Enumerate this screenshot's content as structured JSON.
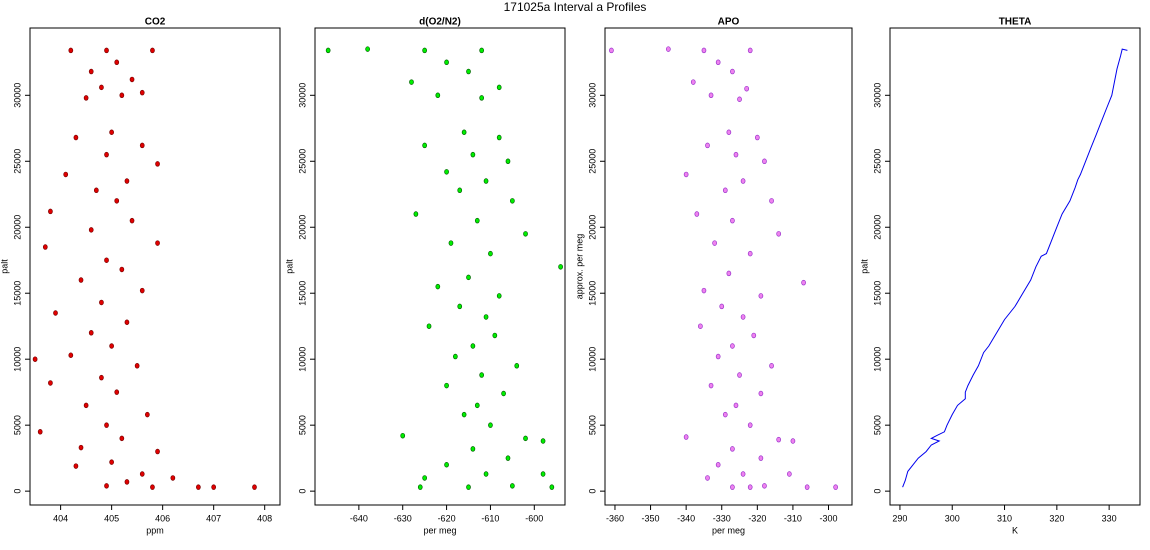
{
  "title": "171025a   Interval a Profiles",
  "chart_data": [
    {
      "type": "scatter",
      "title": "CO2",
      "xlabel": "ppm",
      "ylabel": "palt",
      "color": "#e00000",
      "edgecolor": "#7a0000",
      "xlim": [
        403.4,
        408.3
      ],
      "xticks": [
        404,
        405,
        406,
        407,
        408
      ],
      "ylim": [
        -1050,
        35100
      ],
      "yticks": [
        0,
        5000,
        10000,
        15000,
        20000,
        25000,
        30000
      ],
      "x": [
        404.9,
        404.2,
        405.8,
        405.1,
        404.6,
        405.4,
        404.8,
        405.6,
        404.5,
        405.2,
        405.0,
        404.3,
        405.6,
        404.9,
        405.9,
        404.1,
        405.3,
        404.7,
        405.1,
        403.8,
        405.4,
        404.6,
        405.9,
        403.7,
        404.9,
        405.2,
        404.4,
        405.6,
        404.8,
        403.9,
        405.3,
        404.6,
        405.0,
        404.2,
        403.5,
        405.5,
        404.8,
        403.8,
        405.1,
        404.5,
        405.7,
        404.9,
        403.6,
        405.2,
        404.4,
        405.9,
        405.0,
        404.3,
        405.6,
        406.2,
        405.3,
        406.7,
        407.0,
        407.8,
        405.8,
        404.9
      ],
      "y": [
        33400,
        33400,
        33400,
        32500,
        31800,
        31200,
        30600,
        30200,
        29800,
        30000,
        27200,
        26800,
        26200,
        25500,
        24800,
        24000,
        23500,
        22800,
        22000,
        21200,
        20500,
        19800,
        18800,
        18500,
        17500,
        16800,
        16000,
        15200,
        14300,
        13500,
        12800,
        12000,
        11000,
        10300,
        10000,
        9500,
        8600,
        8200,
        7500,
        6500,
        5800,
        5000,
        4500,
        4000,
        3300,
        3000,
        2200,
        1900,
        1300,
        1000,
        700,
        300,
        300,
        300,
        300,
        400
      ]
    },
    {
      "type": "scatter",
      "title": "d(O2/N2)",
      "xlabel": "per meg",
      "ylabel": "palt",
      "color": "#00ee00",
      "edgecolor": "#006400",
      "xlim": [
        -650,
        -593
      ],
      "xticks": [
        -640,
        -630,
        -620,
        -610,
        -600
      ],
      "ylim": [
        -1050,
        35100
      ],
      "yticks": [
        0,
        5000,
        10000,
        15000,
        20000,
        25000,
        30000
      ],
      "x": [
        -647,
        -638,
        -625,
        -612,
        -620,
        -615,
        -628,
        -608,
        -622,
        -612,
        -616,
        -608,
        -625,
        -614,
        -606,
        -620,
        -611,
        -617,
        -605,
        -627,
        -613,
        -602,
        -619,
        -610,
        -594,
        -615,
        -622,
        -608,
        -617,
        -611,
        -624,
        -609,
        -614,
        -618,
        -604,
        -612,
        -620,
        -607,
        -613,
        -616,
        -610,
        -630,
        -602,
        -598,
        -614,
        -606,
        -620,
        -611,
        -598,
        -625,
        -605,
        -615,
        -626,
        -596
      ],
      "y": [
        33400,
        33500,
        33400,
        33400,
        32500,
        31800,
        31000,
        30600,
        30000,
        29800,
        27200,
        26800,
        26200,
        25500,
        25000,
        24200,
        23500,
        22800,
        22000,
        21000,
        20500,
        19500,
        18800,
        18000,
        17000,
        16200,
        15500,
        14800,
        14000,
        13200,
        12500,
        11800,
        11000,
        10200,
        9500,
        8800,
        8000,
        7400,
        6500,
        5800,
        5000,
        4200,
        4000,
        3800,
        3200,
        2500,
        2000,
        1300,
        1300,
        1000,
        400,
        300,
        300,
        300
      ]
    },
    {
      "type": "scatter",
      "title": "APO",
      "xlabel": "per meg",
      "ylabel": "approx. per meg",
      "color": "#ee82ee",
      "edgecolor": "#9932cc",
      "xlim": [
        -362.8,
        -293.4
      ],
      "xticks": [
        -360,
        -350,
        -340,
        -330,
        -320,
        -310,
        -300
      ],
      "ylim": [
        -1050,
        35100
      ],
      "yticks": [
        0,
        5000,
        10000,
        15000,
        20000,
        25000,
        30000
      ],
      "x": [
        -361,
        -345,
        -335,
        -322,
        -331,
        -327,
        -338,
        -323,
        -333,
        -325,
        -328,
        -320,
        -334,
        -326,
        -318,
        -340,
        -324,
        -329,
        -316,
        -337,
        -327,
        -314,
        -332,
        -322,
        -307,
        -328,
        -335,
        -319,
        -330,
        -324,
        -336,
        -321,
        -327,
        -331,
        -316,
        -325,
        -333,
        -319,
        -326,
        -329,
        -322,
        -340,
        -314,
        -310,
        -327,
        -319,
        -331,
        -324,
        -311,
        -334,
        -318,
        -327,
        -306,
        -298,
        -322
      ],
      "y": [
        33400,
        33500,
        33400,
        33400,
        32500,
        31800,
        31000,
        30500,
        30000,
        29700,
        27200,
        26800,
        26200,
        25500,
        25000,
        24000,
        23500,
        22800,
        22000,
        21000,
        20500,
        19500,
        18800,
        18000,
        15800,
        16500,
        15200,
        14800,
        14000,
        13200,
        12500,
        11800,
        11000,
        10200,
        9500,
        8800,
        8000,
        7400,
        6500,
        5800,
        5000,
        4100,
        3900,
        3800,
        3200,
        2500,
        2000,
        1300,
        1300,
        1000,
        400,
        300,
        300,
        300,
        300
      ]
    },
    {
      "type": "line",
      "title": "THETA",
      "xlabel": "K",
      "ylabel": "palt",
      "color": "#0000ee",
      "xlim": [
        288.1,
        335.9
      ],
      "xticks": [
        290,
        300,
        310,
        320,
        330
      ],
      "ylim": [
        -1050,
        35100
      ],
      "yticks": [
        0,
        5000,
        10000,
        15000,
        20000,
        25000,
        30000
      ],
      "x": [
        290.5,
        291,
        291.5,
        292.5,
        293.5,
        295,
        296,
        297.5,
        296,
        297,
        298.5,
        299,
        300,
        301,
        302.5,
        302.5,
        303,
        304,
        305,
        306,
        307,
        308.5,
        310,
        312,
        313.5,
        315,
        316,
        317,
        318,
        319,
        320,
        321,
        322.5,
        323.5,
        324,
        324.5,
        325.5,
        326.5,
        327.5,
        328.5,
        329.5,
        330.5,
        331,
        331.5,
        332.2,
        332.5,
        333.5
      ],
      "y": [
        300,
        800,
        1500,
        2000,
        2500,
        3000,
        3500,
        3800,
        4000,
        4200,
        4500,
        5000,
        5800,
        6500,
        7000,
        7500,
        8000,
        8800,
        9500,
        10500,
        11000,
        12000,
        13000,
        14000,
        15000,
        16000,
        17000,
        17800,
        18000,
        19000,
        20000,
        21000,
        22000,
        23000,
        23600,
        24000,
        25000,
        26000,
        27000,
        28000,
        29000,
        30000,
        31000,
        32000,
        33000,
        33500,
        33400
      ]
    }
  ]
}
